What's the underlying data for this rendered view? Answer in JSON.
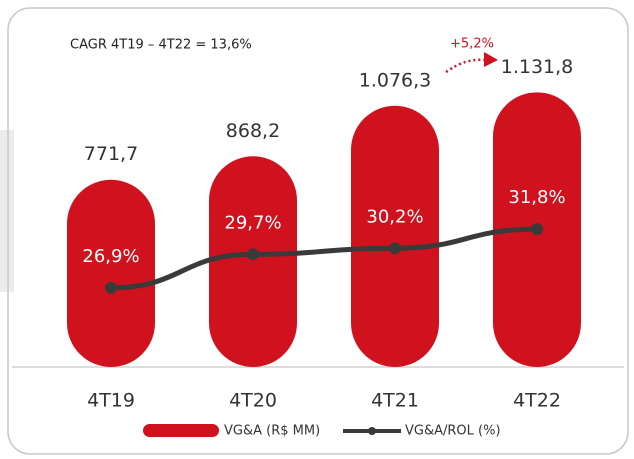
{
  "chart_data": {
    "type": "bar_line",
    "annotations": [
      "CAGR 4T19 – 4T22 = 13,6%",
      "+5,2%"
    ],
    "categories": [
      "4T19",
      "4T20",
      "4T21",
      "4T22"
    ],
    "series": [
      {
        "name": "VG&A (R$ MM)",
        "color": "#d0121f",
        "type": "bar",
        "values": [
          771.7,
          868.2,
          1076.3,
          1131.8
        ],
        "value_labels": [
          "771,7",
          "868,2",
          "1.076,3",
          "1.131,8"
        ]
      },
      {
        "name": "VG&A/ROL (%)",
        "color": "#3a3a3a",
        "type": "line",
        "axis": "y2",
        "values": [
          26.9,
          29.7,
          30.2,
          31.8
        ],
        "value_labels": [
          "26,9%",
          "29,7%",
          "30,2%",
          "31,8%"
        ]
      }
    ],
    "ylim": [
      0,
      1265
    ],
    "y2lim": [
      20.3,
      45.9
    ],
    "legend": "bottom"
  }
}
